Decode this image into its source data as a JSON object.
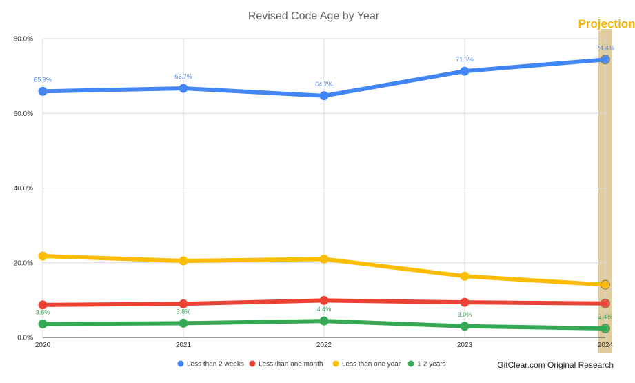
{
  "chart_data": {
    "type": "line",
    "title": "Revised Code Age by Year",
    "xlabel": "",
    "ylabel": "",
    "categories": [
      "2020",
      "2021",
      "2022",
      "2023",
      "2024"
    ],
    "ylim": [
      0,
      80
    ],
    "yticks": [
      "0.0%",
      "20.0%",
      "40.0%",
      "60.0%",
      "80.0%"
    ],
    "ytick_values": [
      0,
      20,
      40,
      60,
      80
    ],
    "grid": true,
    "legend_position": "bottom",
    "series": [
      {
        "name": "Less than 2 weeks",
        "color": "#4285f4",
        "values": [
          65.9,
          66.7,
          64.7,
          71.3,
          74.4
        ],
        "labels": [
          "65.9%",
          "66.7%",
          "64.7%",
          "71.3%",
          "74.4%"
        ],
        "label_placement": "above"
      },
      {
        "name": "Less than one month",
        "color": "#ea4335",
        "values": [
          8.7,
          9.0,
          9.9,
          9.4,
          9.1
        ],
        "labels": [],
        "label_placement": "none"
      },
      {
        "name": "Less than one year",
        "color": "#fbbc04",
        "values": [
          21.8,
          20.5,
          21.0,
          16.4,
          14.1
        ],
        "labels": [],
        "label_placement": "none"
      },
      {
        "name": "1-2 years",
        "color": "#34a853",
        "values": [
          3.6,
          3.8,
          4.4,
          3.0,
          2.4
        ],
        "labels": [
          "3.6%",
          "3.8%",
          "4.4%",
          "3.0%",
          "2.4%"
        ],
        "label_placement": "above"
      }
    ],
    "annotations": [
      {
        "text": "Projection",
        "category": "2024",
        "highlight_color": "#d9c48e",
        "text_color": "#f7b500"
      }
    ],
    "credit": "GitClear.com Original Research"
  }
}
